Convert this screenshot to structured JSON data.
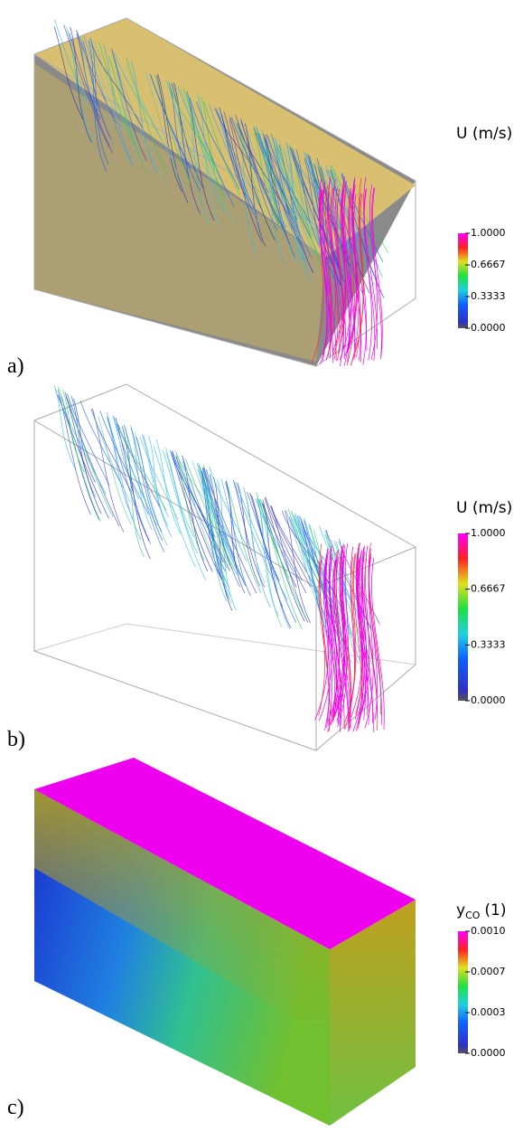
{
  "panels": [
    {
      "label": "a)",
      "colorbar": {
        "title": "U (m/s)",
        "ticks": [
          "1.0000",
          "0.6667",
          "0.3333",
          "0.0000"
        ]
      }
    },
    {
      "label": "b)",
      "colorbar": {
        "title": "U (m/s)",
        "ticks": [
          "1.0000",
          "0.6667",
          "0.3333",
          "0.0000"
        ]
      }
    },
    {
      "label": "c)",
      "colorbar": {
        "title_main": "y",
        "title_sub": "CO",
        "title_rest": "(1)",
        "ticks": [
          "0.0010",
          "0.0007",
          "0.0003",
          "0.0000"
        ]
      }
    }
  ]
}
